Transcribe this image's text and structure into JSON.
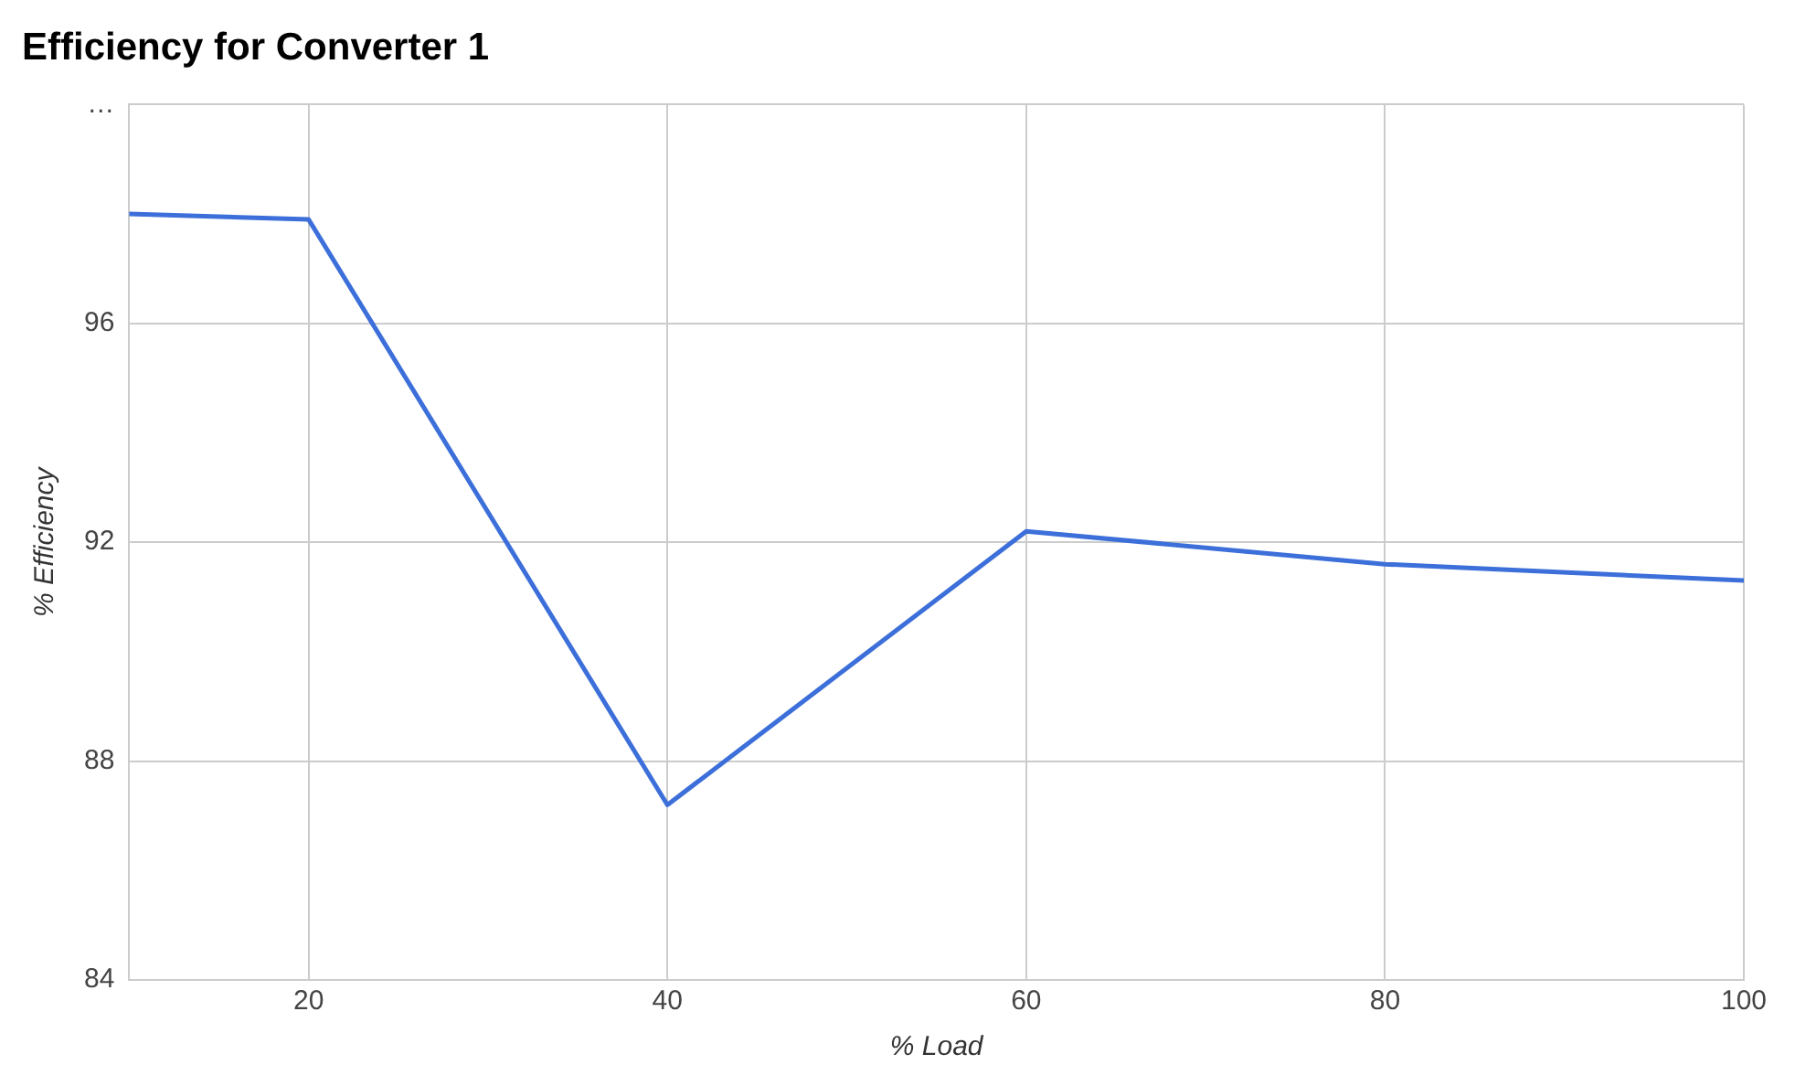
{
  "chart_data": {
    "type": "line",
    "title": "Efficiency for Converter 1",
    "xlabel": "% Load",
    "ylabel": "% Efficiency",
    "x": [
      10,
      20,
      40,
      60,
      80,
      100
    ],
    "series": [
      {
        "color": "#3c6fd9",
        "values": [
          98.0,
          97.9,
          87.2,
          92.2,
          91.6,
          91.3
        ]
      }
    ],
    "xlim": [
      10,
      100
    ],
    "xticks": [
      20,
      40,
      60,
      80,
      100
    ],
    "ylim": [
      84,
      100
    ],
    "yticks": [
      84,
      88,
      92,
      96,
      {
        "value": 100,
        "label": "…"
      }
    ],
    "grid": true,
    "legend": false,
    "marker": "none",
    "line_style": "solid"
  }
}
